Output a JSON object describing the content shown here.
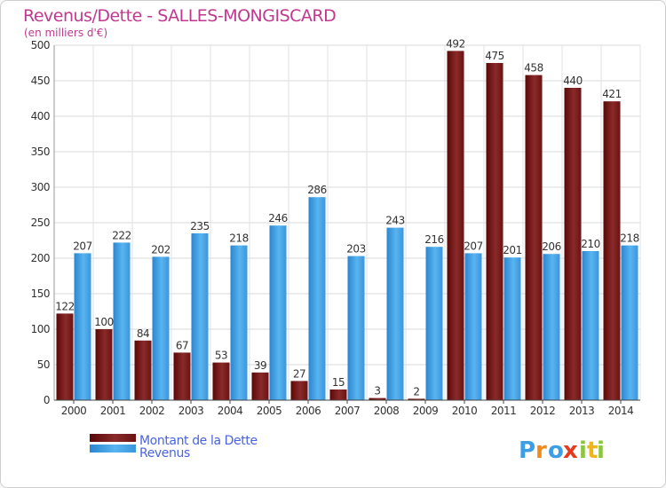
{
  "chart_data": {
    "type": "bar",
    "title": "Revenus/Dette - SALLES-MONGISCARD",
    "subtitle": "(en milliers d'€)",
    "categories": [
      "2000",
      "2001",
      "2002",
      "2003",
      "2004",
      "2005",
      "2006",
      "2007",
      "2008",
      "2009",
      "2010",
      "2011",
      "2012",
      "2013",
      "2014"
    ],
    "series": [
      {
        "name": "Montant de la Dette",
        "color": "#7a1a1a",
        "values": [
          122,
          100,
          84,
          67,
          53,
          39,
          27,
          15,
          3,
          2,
          492,
          475,
          458,
          440,
          421
        ]
      },
      {
        "name": "Revenus",
        "color": "#3d9ee5",
        "values": [
          207,
          222,
          202,
          235,
          218,
          246,
          286,
          203,
          243,
          216,
          207,
          201,
          206,
          210,
          218
        ]
      }
    ],
    "ylim": [
      0,
      500
    ],
    "yticks": [
      0,
      50,
      100,
      150,
      200,
      250,
      300,
      350,
      400,
      450,
      500
    ],
    "grid": true,
    "legend": "bottom-left"
  },
  "branding": {
    "logo_letters": [
      "P",
      "r",
      "o",
      "x",
      "i",
      "t",
      "i"
    ],
    "logo_colors": [
      "#3d9ee5",
      "#f08a1c",
      "#3d9ee5",
      "#e63a1e",
      "#8cc63e",
      "#f0b41c",
      "#8cc63e"
    ]
  }
}
